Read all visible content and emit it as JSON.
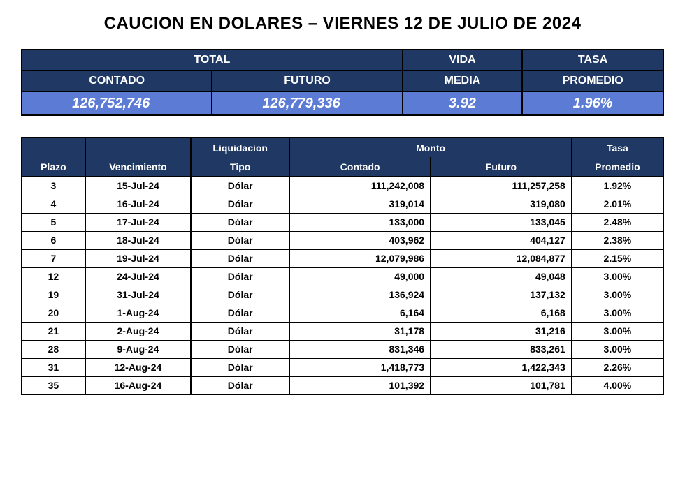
{
  "title": "CAUCION EN DOLARES – VIERNES 12 DE JULIO DE 2024",
  "summary": {
    "headers": {
      "total": "TOTAL",
      "contado": "CONTADO",
      "futuro": "FUTURO",
      "vida": "VIDA",
      "media": "MEDIA",
      "tasa": "TASA",
      "promedio": "PROMEDIO"
    },
    "values": {
      "contado": "126,752,746",
      "futuro": "126,779,336",
      "vida_media": "3.92",
      "tasa_promedio": "1.96%"
    }
  },
  "detail": {
    "headers": {
      "plazo": "Plazo",
      "vencimiento": "Vencimiento",
      "liquidacion": "Liquidacion",
      "tipo": "Tipo",
      "monto": "Monto",
      "contado": "Contado",
      "futuro": "Futuro",
      "tasa": "Tasa",
      "promedio": "Promedio"
    },
    "rows": [
      {
        "plazo": "3",
        "venc": "15-Jul-24",
        "tipo": "Dólar",
        "contado": "111,242,008",
        "futuro": "111,257,258",
        "tasa": "1.92%"
      },
      {
        "plazo": "4",
        "venc": "16-Jul-24",
        "tipo": "Dólar",
        "contado": "319,014",
        "futuro": "319,080",
        "tasa": "2.01%"
      },
      {
        "plazo": "5",
        "venc": "17-Jul-24",
        "tipo": "Dólar",
        "contado": "133,000",
        "futuro": "133,045",
        "tasa": "2.48%"
      },
      {
        "plazo": "6",
        "venc": "18-Jul-24",
        "tipo": "Dólar",
        "contado": "403,962",
        "futuro": "404,127",
        "tasa": "2.38%"
      },
      {
        "plazo": "7",
        "venc": "19-Jul-24",
        "tipo": "Dólar",
        "contado": "12,079,986",
        "futuro": "12,084,877",
        "tasa": "2.15%"
      },
      {
        "plazo": "12",
        "venc": "24-Jul-24",
        "tipo": "Dólar",
        "contado": "49,000",
        "futuro": "49,048",
        "tasa": "3.00%"
      },
      {
        "plazo": "19",
        "venc": "31-Jul-24",
        "tipo": "Dólar",
        "contado": "136,924",
        "futuro": "137,132",
        "tasa": "3.00%"
      },
      {
        "plazo": "20",
        "venc": "1-Aug-24",
        "tipo": "Dólar",
        "contado": "6,164",
        "futuro": "6,168",
        "tasa": "3.00%"
      },
      {
        "plazo": "21",
        "venc": "2-Aug-24",
        "tipo": "Dólar",
        "contado": "31,178",
        "futuro": "31,216",
        "tasa": "3.00%"
      },
      {
        "plazo": "28",
        "venc": "9-Aug-24",
        "tipo": "Dólar",
        "contado": "831,346",
        "futuro": "833,261",
        "tasa": "3.00%"
      },
      {
        "plazo": "31",
        "venc": "12-Aug-24",
        "tipo": "Dólar",
        "contado": "1,418,773",
        "futuro": "1,422,343",
        "tasa": "2.26%"
      },
      {
        "plazo": "35",
        "venc": "16-Aug-24",
        "tipo": "Dólar",
        "contado": "101,392",
        "futuro": "101,781",
        "tasa": "4.00%"
      }
    ]
  }
}
